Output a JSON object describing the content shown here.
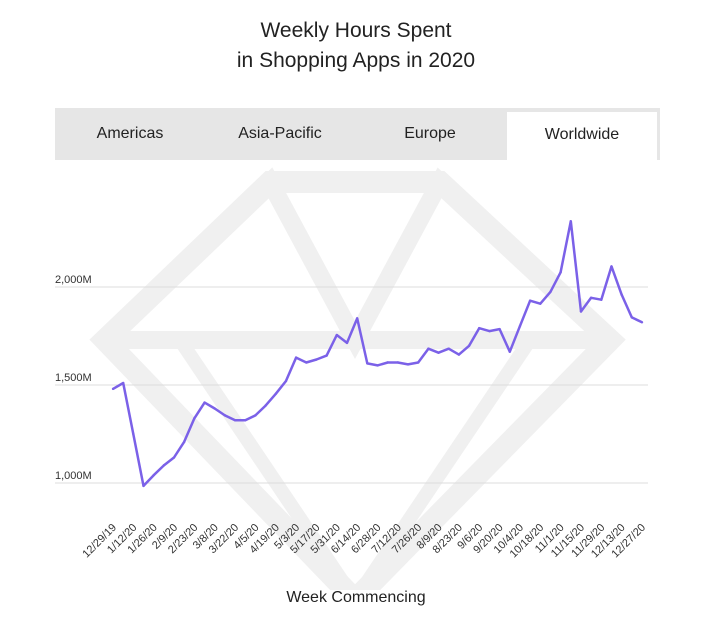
{
  "title": {
    "line1": "Weekly Hours Spent",
    "line2": "in Shopping Apps in 2020"
  },
  "tabs": [
    {
      "label": "Americas",
      "active": false
    },
    {
      "label": "Asia-Pacific",
      "active": false
    },
    {
      "label": "Europe",
      "active": false
    },
    {
      "label": "Worldwide",
      "active": true
    }
  ],
  "colors": {
    "line": "#7b61e8",
    "grid": "#dcdcdc",
    "tab_bg": "#e6e6e6",
    "watermark": "#f0f0f0"
  },
  "watermark_icon": "diamond-icon",
  "chart_data": {
    "type": "line",
    "title": "Weekly Hours Spent in Shopping Apps in 2020",
    "xlabel": "Week Commencing",
    "ylabel": "",
    "ylim": [
      800,
      2450
    ],
    "yticks": [
      {
        "value": 1000,
        "label": "1,000M"
      },
      {
        "value": 1500,
        "label": "1,500M"
      },
      {
        "value": 2000,
        "label": "2,000M"
      }
    ],
    "grid": true,
    "x": [
      "12/29/19",
      "1/5/20",
      "1/12/20",
      "1/19/20",
      "1/26/20",
      "2/2/20",
      "2/9/20",
      "2/16/20",
      "2/23/20",
      "3/1/20",
      "3/8/20",
      "3/15/20",
      "3/22/20",
      "3/29/20",
      "4/5/20",
      "4/12/20",
      "4/19/20",
      "4/26/20",
      "5/3/20",
      "5/10/20",
      "5/17/20",
      "5/24/20",
      "5/31/20",
      "6/7/20",
      "6/14/20",
      "6/21/20",
      "6/28/20",
      "7/5/20",
      "7/12/20",
      "7/19/20",
      "7/26/20",
      "8/2/20",
      "8/9/20",
      "8/16/20",
      "8/23/20",
      "8/30/20",
      "9/6/20",
      "9/13/20",
      "9/20/20",
      "9/27/20",
      "10/4/20",
      "10/11/20",
      "10/18/20",
      "10/25/20",
      "11/1/20",
      "11/8/20",
      "11/15/20",
      "11/22/20",
      "11/29/20",
      "12/6/20",
      "12/13/20",
      "12/20/20",
      "12/27/20"
    ],
    "x_tick_labels": [
      "12/29/19",
      "1/12/20",
      "1/26/20",
      "2/9/20",
      "2/23/20",
      "3/8/20",
      "3/22/20",
      "4/5/20",
      "4/19/20",
      "5/3/20",
      "5/17/20",
      "5/31/20",
      "6/14/20",
      "6/28/20",
      "7/12/20",
      "7/26/20",
      "8/9/20",
      "8/23/20",
      "9/6/20",
      "9/20/20",
      "10/4/20",
      "10/18/20",
      "11/1/20",
      "11/15/20",
      "11/29/20",
      "12/13/20",
      "12/27/20"
    ],
    "series": [
      {
        "values": [
          1480,
          1510,
          1250,
          985,
          1040,
          1090,
          1130,
          1210,
          1330,
          1410,
          1380,
          1345,
          1320,
          1320,
          1345,
          1395,
          1455,
          1520,
          1640,
          1615,
          1630,
          1650,
          1755,
          1715,
          1840,
          1610,
          1600,
          1615,
          1615,
          1605,
          1615,
          1685,
          1665,
          1685,
          1655,
          1700,
          1790,
          1775,
          1785,
          1670,
          1800,
          1930,
          1915,
          1975,
          2075,
          2335,
          1875,
          1945,
          1935,
          2105,
          1960,
          1845,
          1820
        ]
      }
    ]
  }
}
